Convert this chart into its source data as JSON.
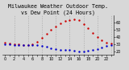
{
  "title": "Milwaukee Weather Outdoor Temp.\nvs Dew Point (24 Hours)",
  "background_color": "#d8d8d8",
  "plot_bg_color": "#d8d8d8",
  "hours": [
    0,
    1,
    2,
    3,
    4,
    5,
    6,
    7,
    8,
    9,
    10,
    11,
    12,
    13,
    14,
    15,
    16,
    17,
    18,
    19,
    20,
    21,
    22,
    23
  ],
  "temp_values": [
    32,
    31,
    30,
    30,
    29,
    29,
    30,
    34,
    39,
    45,
    50,
    55,
    59,
    62,
    64,
    65,
    63,
    58,
    52,
    46,
    40,
    36,
    33,
    31
  ],
  "dew_values": [
    30,
    30,
    29,
    29,
    29,
    29,
    29,
    29,
    28,
    27,
    25,
    24,
    23,
    22,
    22,
    21,
    20,
    20,
    21,
    22,
    24,
    26,
    28,
    29
  ],
  "temp_color": "#cc0000",
  "dew_color": "#0000cc",
  "grid_color": "#aaaaaa",
  "dashed_positions": [
    2,
    5,
    8,
    11,
    14,
    17,
    20,
    23
  ],
  "ylim": [
    16,
    70
  ],
  "xlim": [
    -0.5,
    23.5
  ],
  "title_fontsize": 4.8,
  "tick_fontsize": 3.5,
  "marker_size": 1.5,
  "ytick_vals": [
    20,
    30,
    40,
    50,
    60
  ]
}
